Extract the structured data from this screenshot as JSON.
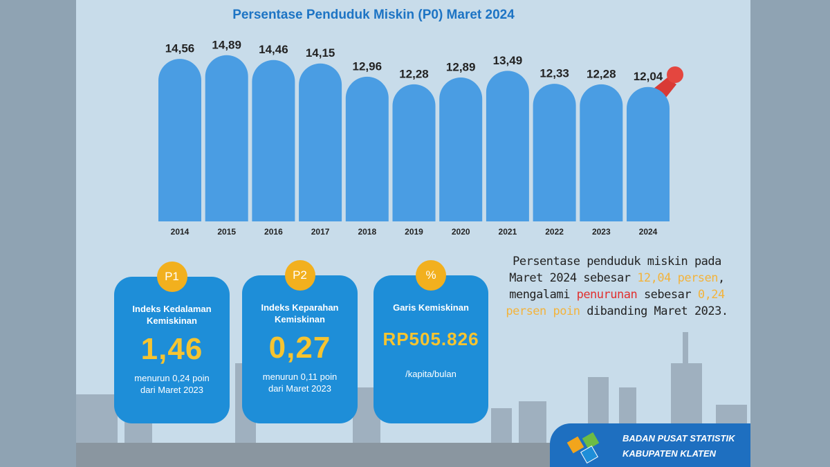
{
  "chart_data": {
    "type": "bar",
    "title": "Persentase Penduduk Miskin (P0)  Maret 2024",
    "categories": [
      "2014",
      "2015",
      "2016",
      "2017",
      "2018",
      "2019",
      "2020",
      "2021",
      "2022",
      "2023",
      "2024"
    ],
    "values": [
      14.56,
      14.89,
      14.46,
      14.15,
      12.96,
      12.28,
      12.89,
      13.49,
      12.33,
      12.28,
      12.04
    ],
    "value_labels": [
      "14,56",
      "14,89",
      "14,46",
      "14,15",
      "12,96",
      "12,28",
      "12,89",
      "13,49",
      "12,33",
      "12,28",
      "12,04"
    ],
    "color": "#4a9de3",
    "ylim": [
      0,
      15
    ]
  },
  "cards": [
    {
      "badge": "P1",
      "title": "Indeks Kedalaman Kemiskinan",
      "value": "1,46",
      "note": "menurun 0,24 poin dari Maret 2023"
    },
    {
      "badge": "P2",
      "title": "Indeks Keparahan Kemiskinan",
      "value": "0,27",
      "note": "menurun 0,11 poin dari Maret 2023"
    },
    {
      "badge": "%",
      "title": "Garis Kemiskinan",
      "value": "RP505.826",
      "note": "/kapita/bulan"
    }
  ],
  "summary": [
    "Persentase penduduk miskin pada Maret 2024 sebesar ",
    "12,04 persen",
    ", mengalami ",
    "penurunan",
    " sebesar ",
    "0,24 persen poin",
    " dibanding Maret 2023."
  ],
  "footer": {
    "line1": "BADAN PUSAT STATISTIK",
    "line2": "KABUPATEN KLATEN"
  }
}
